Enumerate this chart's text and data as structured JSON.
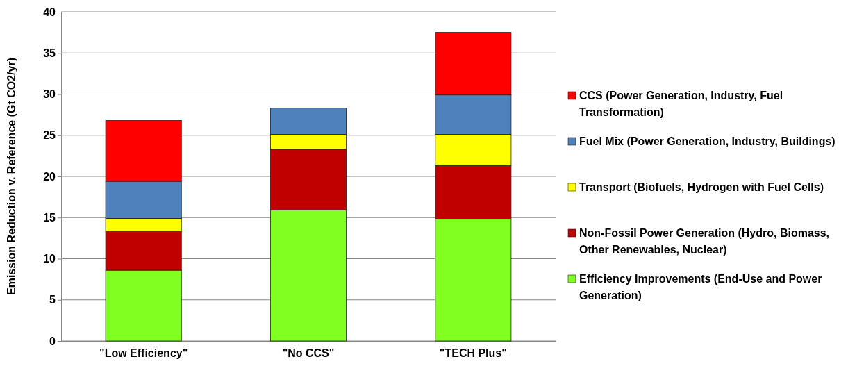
{
  "chart_data": {
    "type": "bar",
    "stacked": true,
    "ylabel": "Emission Reduction v. Reference  (Gt CO2/yr)",
    "categories": [
      "\"Low Efficiency\"",
      "\"No CCS\"",
      "\"TECH Plus\""
    ],
    "series": [
      {
        "name": "Efficiency Improvements (End-Use and Power Generation)",
        "color": "#80ff20",
        "values": [
          8.6,
          15.9,
          14.8
        ]
      },
      {
        "name": "Non-Fossil Power Generation (Hydro, Biomass, Other Renewables, Nuclear)",
        "color": "#c00000",
        "values": [
          4.7,
          7.4,
          6.5
        ]
      },
      {
        "name": "Transport (Biofuels, Hydrogen with Fuel Cells)",
        "color": "#ffff00",
        "values": [
          1.6,
          1.8,
          3.8
        ]
      },
      {
        "name": "Fuel Mix (Power Generation, Industry, Buildings)",
        "color": "#4f81bd",
        "values": [
          4.5,
          3.2,
          4.8
        ]
      },
      {
        "name": "CCS (Power Generation, Industry, Fuel Transformation)",
        "color": "#ff0000",
        "values": [
          7.4,
          0,
          7.6
        ]
      }
    ],
    "ylim": [
      0,
      40
    ],
    "yticks": [
      0,
      5,
      10,
      15,
      20,
      25,
      30,
      35,
      40
    ],
    "grid": "y",
    "legend": "right"
  }
}
